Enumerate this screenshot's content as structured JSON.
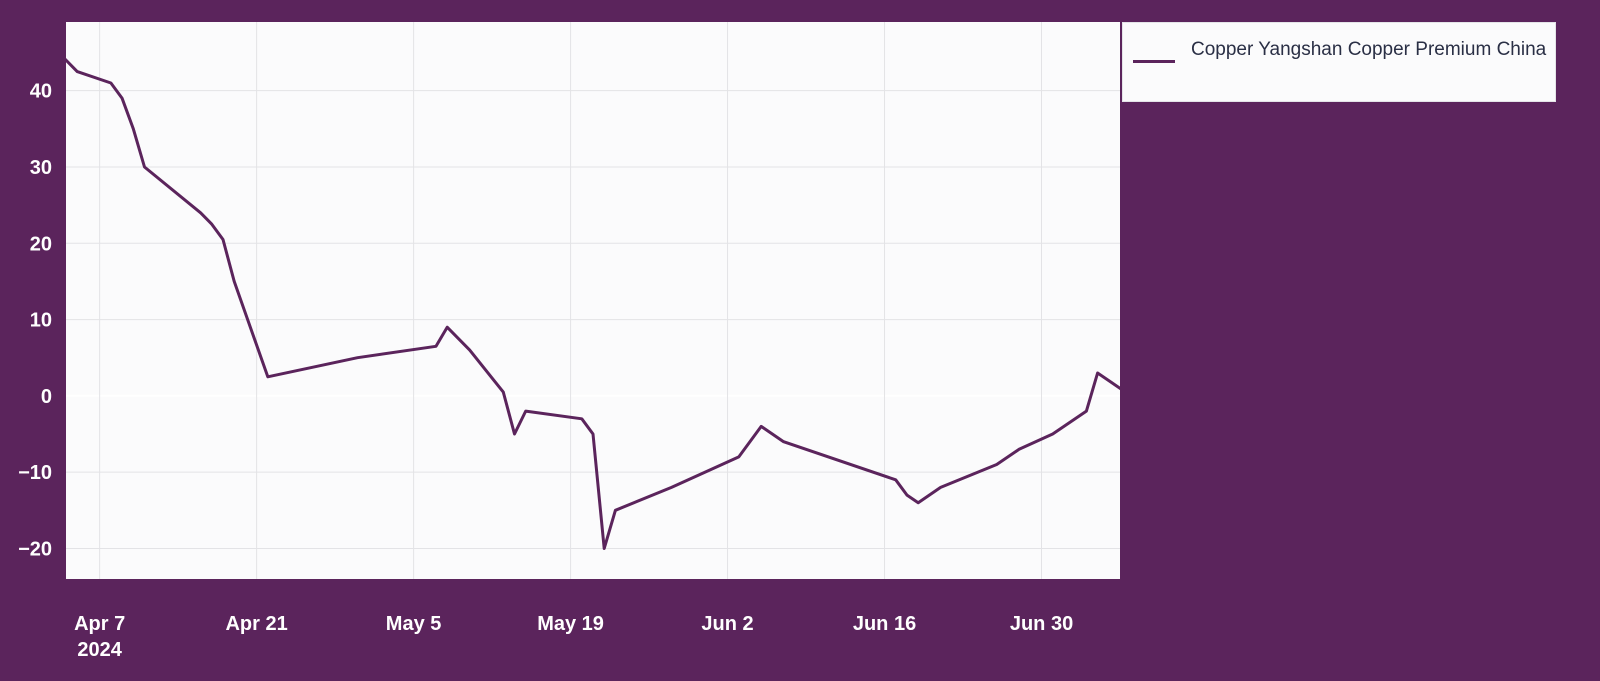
{
  "chart_data": {
    "type": "line",
    "title": "",
    "xlabel": "",
    "ylabel": "",
    "ylim": [
      -24,
      49
    ],
    "xlim": [
      "2024-04-04",
      "2024-07-07"
    ],
    "grid": true,
    "legend_position": "top-right",
    "colors": {
      "line": "#5b245c",
      "background": "#5b245c",
      "plot": "#fbfbfc",
      "grid": "#e3e3e6",
      "text": "#ffffff"
    },
    "yticks": [
      40,
      30,
      20,
      10,
      0,
      -10,
      -20
    ],
    "ytick_labels": [
      "40",
      "30",
      "20",
      "10",
      "0",
      "−10",
      "−20"
    ],
    "xticks": [
      {
        "date": "2024-04-07",
        "label": "Apr 7",
        "sublabel": "2024"
      },
      {
        "date": "2024-04-21",
        "label": "Apr 21"
      },
      {
        "date": "2024-05-05",
        "label": "May 5"
      },
      {
        "date": "2024-05-19",
        "label": "May 19"
      },
      {
        "date": "2024-06-02",
        "label": "Jun 2"
      },
      {
        "date": "2024-06-16",
        "label": "Jun 16"
      },
      {
        "date": "2024-06-30",
        "label": "Jun 30"
      }
    ],
    "series": [
      {
        "name": "Copper Yangshan Copper Premium China",
        "points": [
          [
            "2024-04-03",
            45.5
          ],
          [
            "2024-04-05",
            42.5
          ],
          [
            "2024-04-08",
            41.0
          ],
          [
            "2024-04-09",
            39.0
          ],
          [
            "2024-04-10",
            35.0
          ],
          [
            "2024-04-11",
            30.0
          ],
          [
            "2024-04-16",
            24.0
          ],
          [
            "2024-04-17",
            22.5
          ],
          [
            "2024-04-18",
            20.5
          ],
          [
            "2024-04-19",
            15.0
          ],
          [
            "2024-04-22",
            2.5
          ],
          [
            "2024-04-30",
            5.0
          ],
          [
            "2024-05-07",
            6.5
          ],
          [
            "2024-05-08",
            9.0
          ],
          [
            "2024-05-10",
            6.0
          ],
          [
            "2024-05-13",
            0.5
          ],
          [
            "2024-05-14",
            -5.0
          ],
          [
            "2024-05-15",
            -2.0
          ],
          [
            "2024-05-20",
            -3.0
          ],
          [
            "2024-05-21",
            -5.0
          ],
          [
            "2024-05-22",
            -20.0
          ],
          [
            "2024-05-23",
            -15.0
          ],
          [
            "2024-05-28",
            -12.0
          ],
          [
            "2024-06-03",
            -8.0
          ],
          [
            "2024-06-05",
            -4.0
          ],
          [
            "2024-06-07",
            -6.0
          ],
          [
            "2024-06-17",
            -11.0
          ],
          [
            "2024-06-18",
            -13.0
          ],
          [
            "2024-06-19",
            -14.0
          ],
          [
            "2024-06-21",
            -12.0
          ],
          [
            "2024-06-26",
            -9.0
          ],
          [
            "2024-06-28",
            -7.0
          ],
          [
            "2024-07-01",
            -5.0
          ],
          [
            "2024-07-04",
            -2.0
          ],
          [
            "2024-07-05",
            3.0
          ],
          [
            "2024-07-08",
            0.0
          ]
        ]
      }
    ]
  }
}
